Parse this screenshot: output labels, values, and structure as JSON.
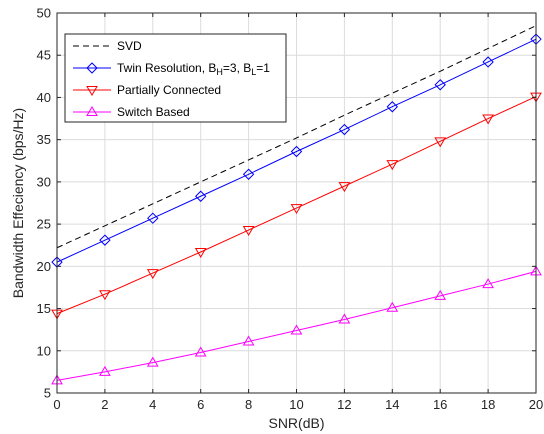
{
  "chart_data": {
    "type": "line",
    "xlabel": "SNR(dB)",
    "ylabel": "Bandwidth Effeciency (bps/Hz)",
    "xlim": [
      0,
      20
    ],
    "ylim": [
      5,
      50
    ],
    "xticks": [
      0,
      2,
      4,
      6,
      8,
      10,
      12,
      14,
      16,
      18,
      20
    ],
    "yticks": [
      5,
      10,
      15,
      20,
      25,
      30,
      35,
      40,
      45,
      50
    ],
    "grid": true,
    "legend_position": "top-left",
    "x": [
      0,
      2,
      4,
      6,
      8,
      10,
      12,
      14,
      16,
      18,
      20
    ],
    "series": [
      {
        "name": "SVD",
        "color": "#000000",
        "dash": "dashed",
        "marker": "none",
        "values": [
          22.2,
          24.8,
          27.4,
          30.0,
          32.6,
          35.2,
          37.9,
          40.5,
          43.1,
          45.8,
          48.5
        ]
      },
      {
        "name": "Twin Resolution, B",
        "name_parts": [
          "Twin Resolution, B",
          "H",
          "=3, B",
          "L",
          "=1"
        ],
        "color": "#0000ff",
        "dash": "solid",
        "marker": "diamond",
        "values": [
          20.5,
          23.1,
          25.7,
          28.3,
          30.9,
          33.6,
          36.2,
          38.9,
          41.5,
          44.2,
          46.9
        ]
      },
      {
        "name": "Partially Connected",
        "color": "#ff0000",
        "dash": "solid",
        "marker": "triangle-down",
        "values": [
          14.4,
          16.7,
          19.2,
          21.7,
          24.3,
          26.9,
          29.5,
          32.1,
          34.8,
          37.5,
          40.1
        ]
      },
      {
        "name": "Switch Based",
        "color": "#ff00ff",
        "dash": "solid",
        "marker": "triangle-up",
        "values": [
          6.5,
          7.5,
          8.6,
          9.8,
          11.1,
          12.4,
          13.7,
          15.1,
          16.5,
          17.9,
          19.4
        ]
      }
    ]
  }
}
